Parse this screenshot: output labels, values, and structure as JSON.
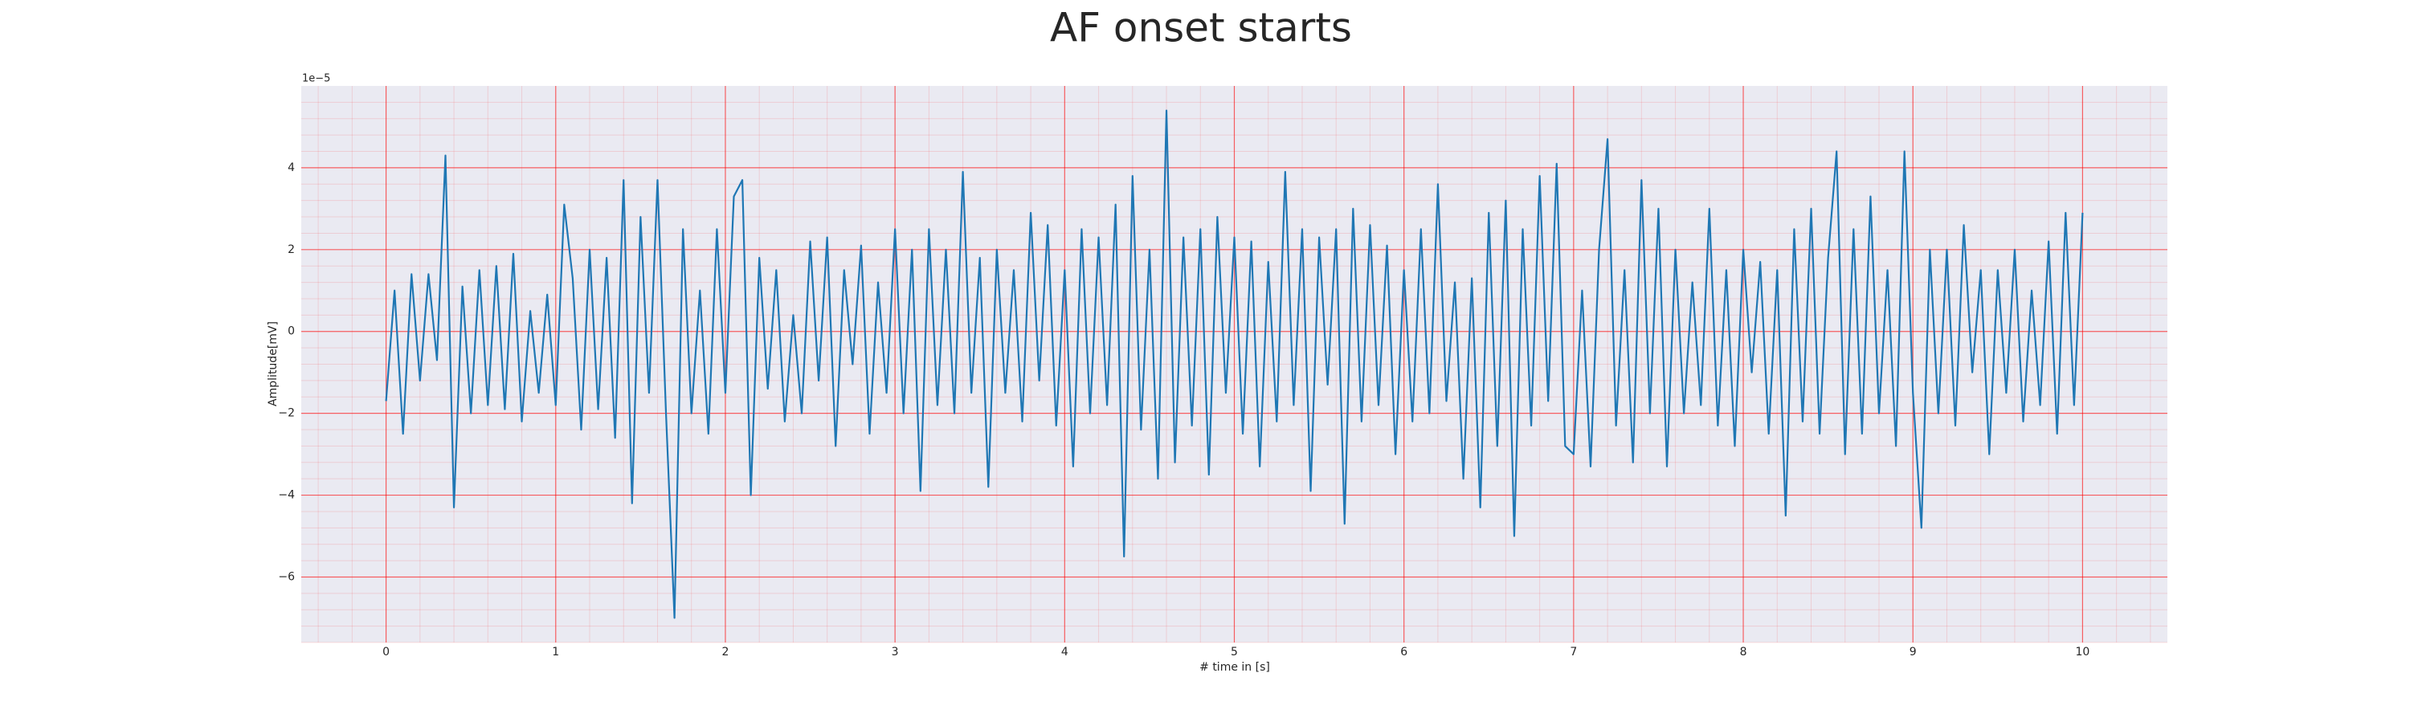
{
  "chart_data": {
    "type": "line",
    "title": "AF onset starts",
    "xlabel": "# time in [s]",
    "ylabel": "Amplitude[mV]",
    "y_offset_label": "1e−5",
    "x": [
      0,
      0.05,
      0.1,
      0.15,
      0.2,
      0.25,
      0.3,
      0.35,
      0.4,
      0.45,
      0.5,
      0.55,
      0.6,
      0.65,
      0.7,
      0.75,
      0.8,
      0.85,
      0.9,
      0.95,
      1,
      1.05,
      1.1,
      1.15,
      1.2,
      1.25,
      1.3,
      1.35,
      1.4,
      1.45,
      1.5,
      1.55,
      1.6,
      1.65,
      1.7,
      1.75,
      1.8,
      1.85,
      1.9,
      1.95,
      2,
      2.05,
      2.1,
      2.15,
      2.2,
      2.25,
      2.3,
      2.35,
      2.4,
      2.45,
      2.5,
      2.55,
      2.6,
      2.65,
      2.7,
      2.75,
      2.8,
      2.85,
      2.9,
      2.95,
      3,
      3.05,
      3.1,
      3.15,
      3.2,
      3.25,
      3.3,
      3.35,
      3.4,
      3.45,
      3.5,
      3.55,
      3.6,
      3.65,
      3.7,
      3.75,
      3.8,
      3.85,
      3.9,
      3.95,
      4,
      4.05,
      4.1,
      4.15,
      4.2,
      4.25,
      4.3,
      4.35,
      4.4,
      4.45,
      4.5,
      4.55,
      4.6,
      4.65,
      4.7,
      4.75,
      4.8,
      4.85,
      4.9,
      4.95,
      5,
      5.05,
      5.1,
      5.15,
      5.2,
      5.25,
      5.3,
      5.35,
      5.4,
      5.45,
      5.5,
      5.55,
      5.6,
      5.65,
      5.7,
      5.75,
      5.8,
      5.85,
      5.9,
      5.95,
      6,
      6.05,
      6.1,
      6.15,
      6.2,
      6.25,
      6.3,
      6.35,
      6.4,
      6.45,
      6.5,
      6.55,
      6.6,
      6.65,
      6.7,
      6.75,
      6.8,
      6.85,
      6.9,
      6.95,
      7,
      7.05,
      7.1,
      7.15,
      7.2,
      7.25,
      7.3,
      7.35,
      7.4,
      7.45,
      7.5,
      7.55,
      7.6,
      7.65,
      7.7,
      7.75,
      7.8,
      7.85,
      7.9,
      7.95,
      8,
      8.05,
      8.1,
      8.15,
      8.2,
      8.25,
      8.3,
      8.35,
      8.4,
      8.45,
      8.5,
      8.55,
      8.6,
      8.65,
      8.7,
      8.75,
      8.8,
      8.85,
      8.9,
      8.95,
      9,
      9.05,
      9.1,
      9.15,
      9.2,
      9.25,
      9.3,
      9.35,
      9.4,
      9.45,
      9.5,
      9.55,
      9.6,
      9.65,
      9.7,
      9.75,
      9.8,
      9.85,
      9.9,
      9.95,
      10
    ],
    "series": [
      {
        "color": "#1f77b4",
        "values": [
          -1.7,
          1.0,
          -2.5,
          1.4,
          -1.2,
          1.4,
          -0.7,
          4.3,
          -4.3,
          1.1,
          -2.0,
          1.5,
          -1.8,
          1.6,
          -1.9,
          1.9,
          -2.2,
          0.5,
          -1.5,
          0.9,
          -1.8,
          3.1,
          1.3,
          -2.4,
          2.0,
          -1.9,
          1.8,
          -2.6,
          3.7,
          -4.2,
          2.8,
          -1.5,
          3.7,
          -2.0,
          -7.0,
          2.5,
          -2.0,
          1.0,
          -2.5,
          2.5,
          -1.5,
          3.3,
          3.7,
          -4.0,
          1.8,
          -1.4,
          1.5,
          -2.2,
          0.4,
          -2.0,
          2.2,
          -1.2,
          2.3,
          -2.8,
          1.5,
          -0.8,
          2.1,
          -2.5,
          1.2,
          -1.5,
          2.5,
          -2.0,
          2.0,
          -3.9,
          2.5,
          -1.8,
          2.0,
          -2.0,
          3.9,
          -1.5,
          1.8,
          -3.8,
          2.0,
          -1.5,
          1.5,
          -2.2,
          2.9,
          -1.2,
          2.6,
          -2.3,
          1.5,
          -3.3,
          2.5,
          -2.0,
          2.3,
          -1.8,
          3.1,
          -5.5,
          3.8,
          -2.4,
          2.0,
          -3.6,
          5.4,
          -3.2,
          2.3,
          -2.3,
          2.5,
          -3.5,
          2.8,
          -1.5,
          2.3,
          -2.5,
          2.2,
          -3.3,
          1.7,
          -2.2,
          3.9,
          -1.8,
          2.5,
          -3.9,
          2.3,
          -1.3,
          2.5,
          -4.7,
          3.0,
          -2.2,
          2.6,
          -1.8,
          2.1,
          -3.0,
          1.5,
          -2.2,
          2.5,
          -2.0,
          3.6,
          -1.7,
          1.2,
          -3.6,
          1.3,
          -4.3,
          2.9,
          -2.8,
          3.2,
          -5.0,
          2.5,
          -2.3,
          3.8,
          -1.7,
          4.1,
          -2.8,
          -3.0,
          1.0,
          -3.3,
          2.0,
          4.7,
          -2.3,
          1.5,
          -3.2,
          3.7,
          -2.0,
          3.0,
          -3.3,
          2.0,
          -2.0,
          1.2,
          -1.8,
          3.0,
          -2.3,
          1.5,
          -2.8,
          2.0,
          -1.0,
          1.7,
          -2.5,
          1.5,
          -4.5,
          2.5,
          -2.2,
          3.0,
          -2.5,
          1.8,
          4.4,
          -3.0,
          2.5,
          -2.5,
          3.3,
          -2.0,
          1.5,
          -2.8,
          4.4,
          -1.5,
          -4.8,
          2.0,
          -2.0,
          2.0,
          -2.3,
          2.6,
          -1.0,
          1.5,
          -3.0,
          1.5,
          -1.5,
          2.0,
          -2.2,
          1.0,
          -1.8,
          2.2,
          -2.5,
          2.9,
          -1.8,
          2.9
        ]
      }
    ],
    "xlim": [
      -0.5,
      10.5
    ],
    "ylim": [
      -7.6,
      6.0
    ],
    "xticks": [
      0,
      1,
      2,
      3,
      4,
      5,
      6,
      7,
      8,
      9,
      10
    ],
    "yticks": [
      {
        "value": -6,
        "label": "−6"
      },
      {
        "value": -4,
        "label": "−4"
      },
      {
        "value": -2,
        "label": "−2"
      },
      0,
      2,
      4
    ],
    "grid": true,
    "grid_color": "#ff0000",
    "minor_grid": {
      "x": 5,
      "y": 5
    },
    "background": "#eaeaf2"
  }
}
